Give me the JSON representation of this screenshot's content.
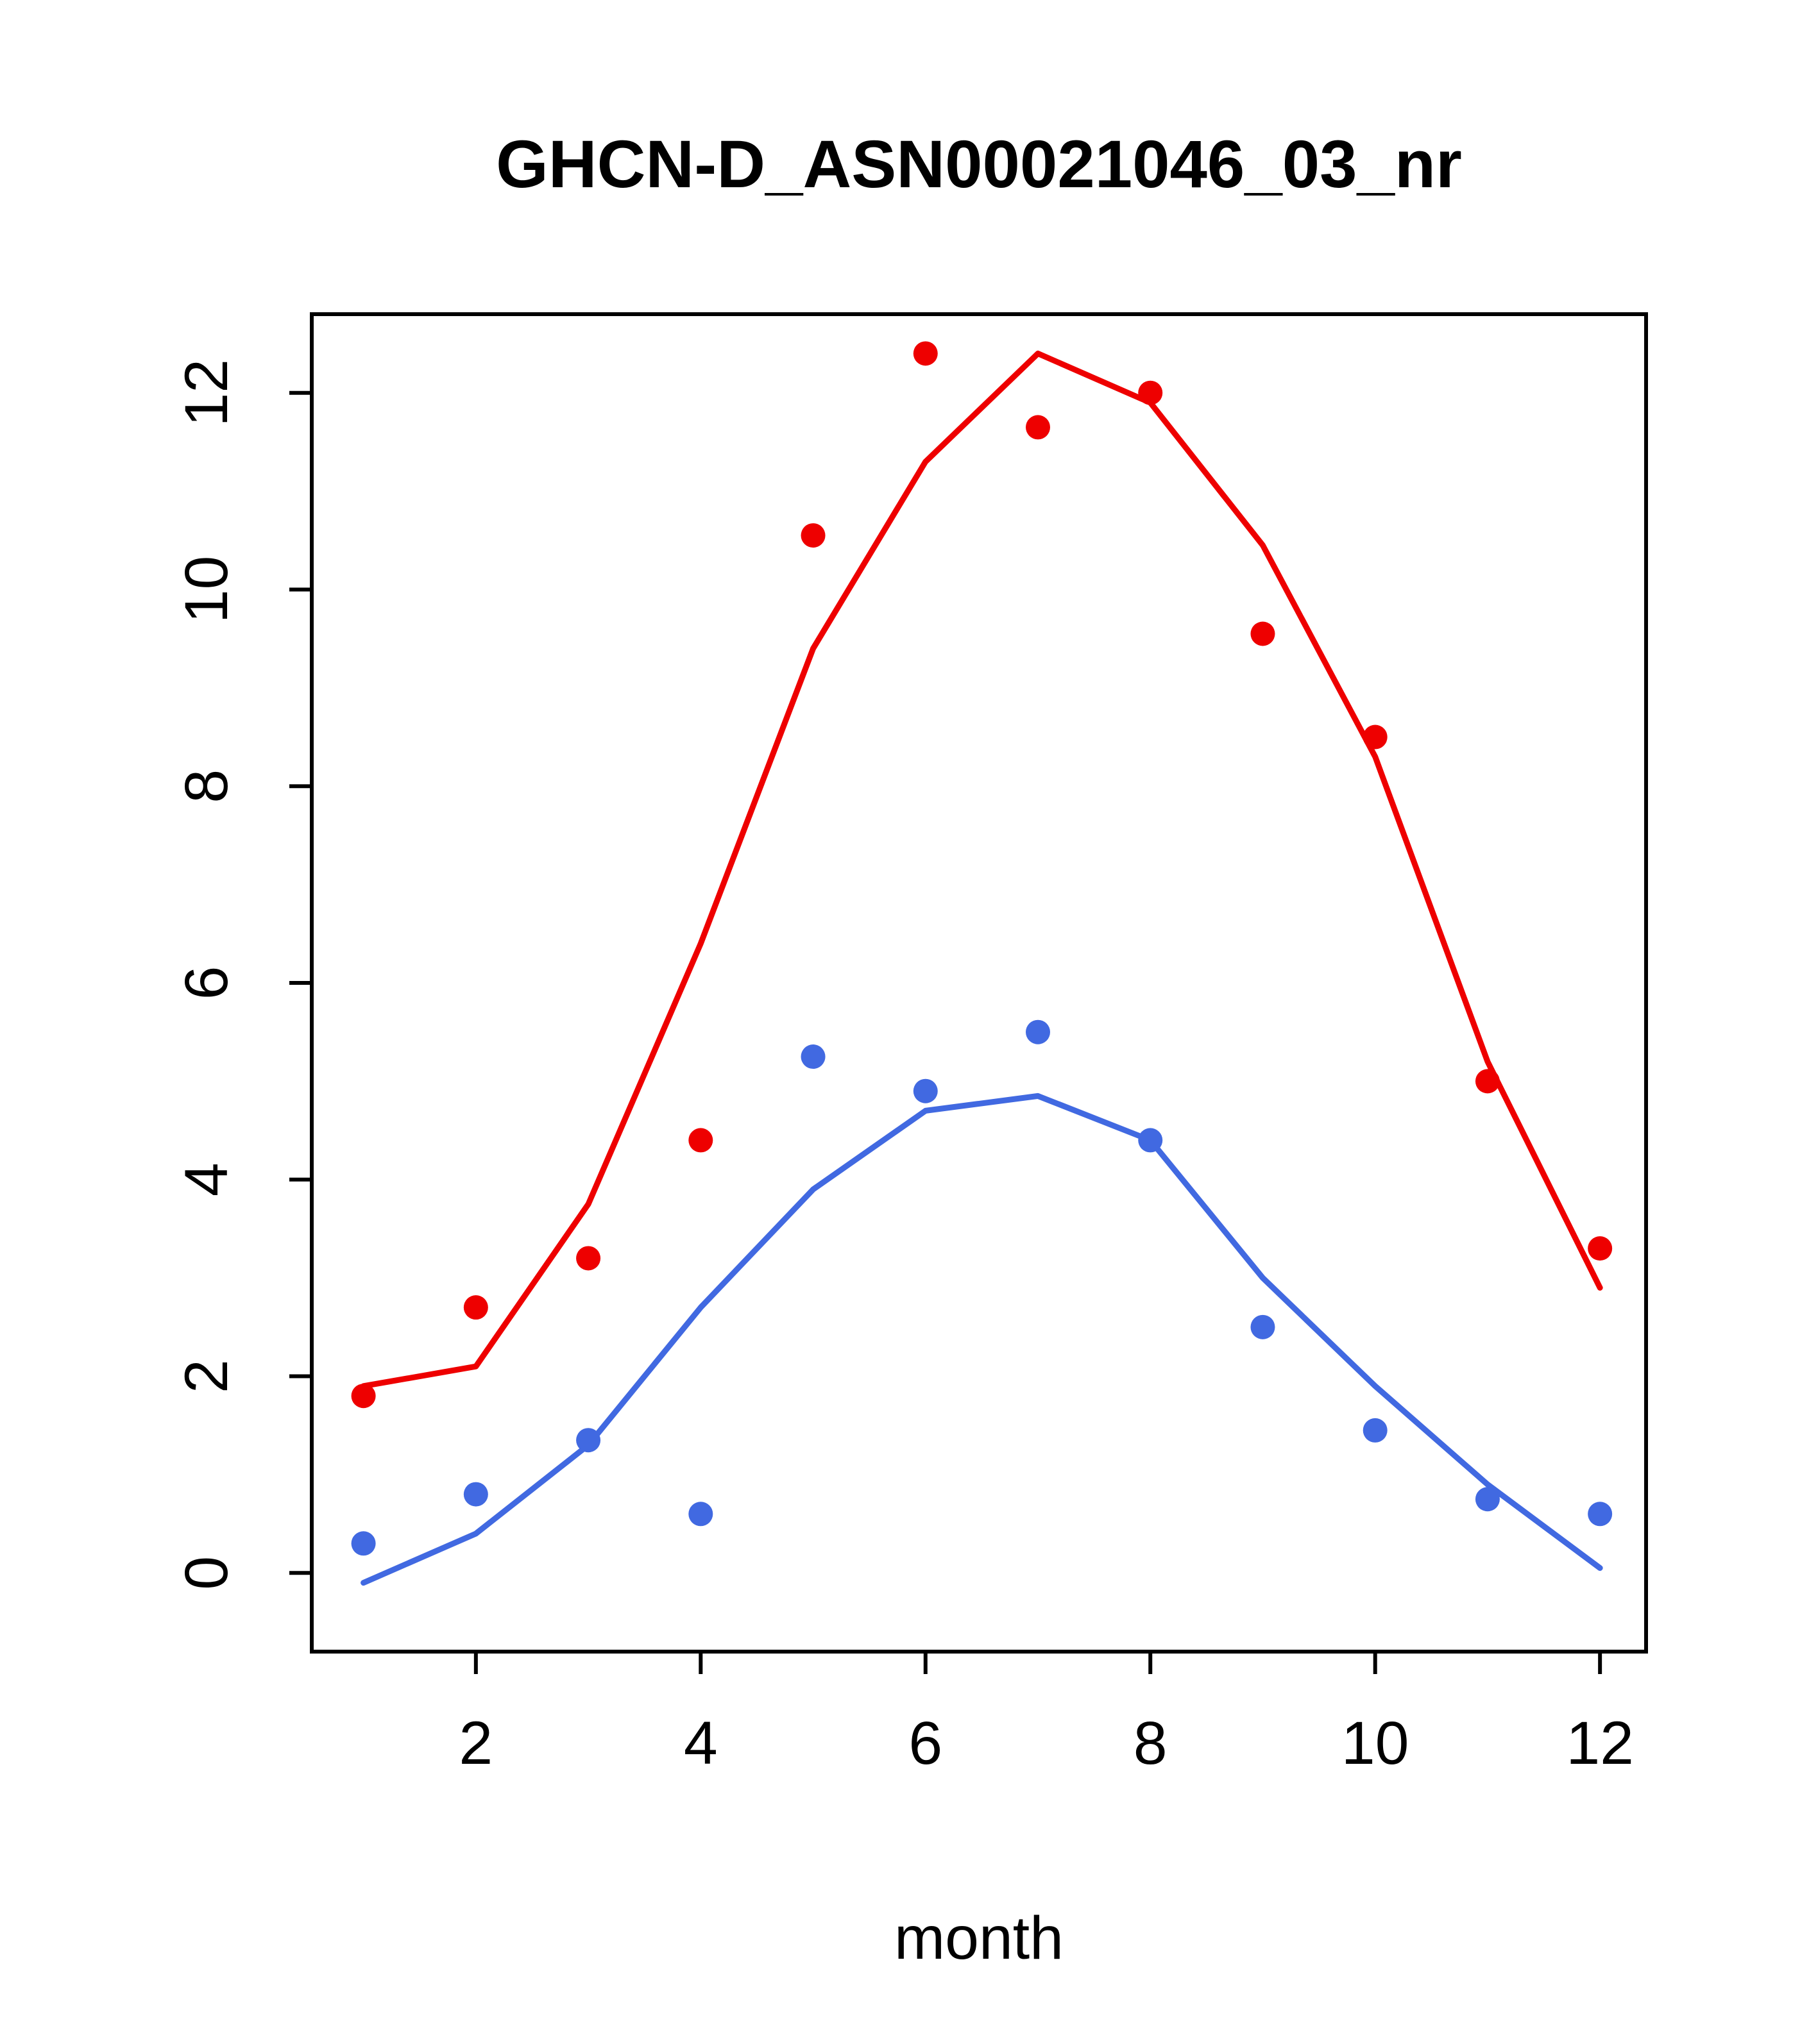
{
  "page": {
    "background": "#ffffff",
    "foreground": "#000000"
  },
  "chart_data": {
    "type": "scatter",
    "title": "GHCN-D_ASN00021046_03_nr",
    "xlabel": "month",
    "ylabel": "",
    "x": [
      1,
      2,
      3,
      4,
      5,
      6,
      7,
      8,
      9,
      10,
      11,
      12
    ],
    "xlim": [
      0.54,
      12.41
    ],
    "ylim": [
      -0.8,
      12.8
    ],
    "xticks": [
      2,
      4,
      6,
      8,
      10,
      12
    ],
    "yticks": [
      0,
      2,
      4,
      6,
      8,
      10,
      12
    ],
    "grid": false,
    "legend": null,
    "series": [
      {
        "name": "upper-fit-line-red",
        "type": "line",
        "color": "#ee0000",
        "values": [
          1.9,
          2.1,
          3.75,
          6.4,
          9.4,
          11.3,
          12.4,
          11.9,
          10.45,
          8.3,
          5.2,
          2.9
        ]
      },
      {
        "name": "upper-points-red",
        "type": "scatter",
        "color": "#ee0000",
        "values": [
          1.8,
          2.7,
          3.2,
          4.4,
          10.55,
          12.4,
          11.65,
          12.0,
          9.55,
          8.5,
          5.0,
          3.3
        ]
      },
      {
        "name": "lower-fit-line-blue",
        "type": "line",
        "color": "#4169e1",
        "values": [
          -0.1,
          0.4,
          1.3,
          2.7,
          3.9,
          4.7,
          4.85,
          4.4,
          3.0,
          1.9,
          0.9,
          0.05
        ]
      },
      {
        "name": "lower-points-blue",
        "type": "scatter",
        "color": "#4169e1",
        "values": [
          0.3,
          0.8,
          1.35,
          0.6,
          5.25,
          4.9,
          5.5,
          4.4,
          2.5,
          1.45,
          0.75,
          0.6
        ]
      }
    ]
  }
}
